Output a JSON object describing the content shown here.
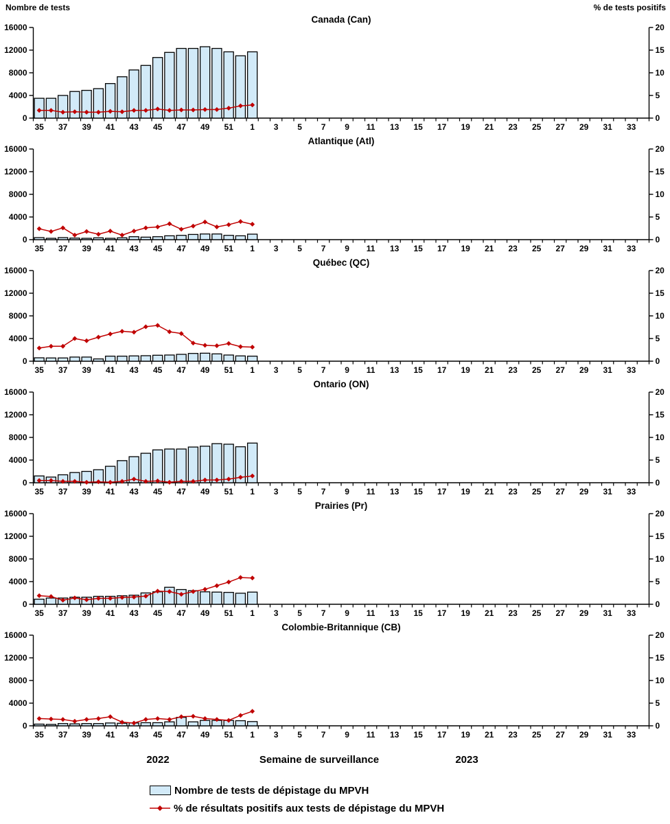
{
  "axis_headers": {
    "left": "Nombre de tests",
    "right": "% de tests positifs"
  },
  "footer": {
    "year_left": "2022",
    "axis_title": "Semaine de surveillance",
    "year_right": "2023"
  },
  "legend": {
    "bar_label": "Nombre de tests de dépistage du MPVH",
    "line_label": "% de résultats positifs aux tests de dépistage du MPVH"
  },
  "colors": {
    "bar_fill": "#D2EAF8",
    "bar_stroke": "#000000",
    "line_color": "#C00000",
    "text_color": "#000000"
  },
  "chart_data": {
    "type": "bar+line combo, 6 stacked regional panels",
    "total_week_slots": 52,
    "week_tick_labels": [
      "35",
      "37",
      "39",
      "41",
      "43",
      "45",
      "47",
      "49",
      "51",
      "1",
      "3",
      "5",
      "7",
      "9",
      "11",
      "13",
      "15",
      "17",
      "19",
      "21",
      "23",
      "25",
      "27",
      "29",
      "31",
      "33"
    ],
    "weeks_with_data": [
      "35",
      "36",
      "37",
      "38",
      "39",
      "40",
      "41",
      "42",
      "43",
      "44",
      "45",
      "46",
      "47",
      "48",
      "49",
      "50",
      "51",
      "52",
      "1"
    ],
    "left_axis": {
      "title": "Nombre de tests",
      "ticks": [
        0,
        4000,
        8000,
        12000,
        16000
      ],
      "max": 16000
    },
    "right_axis": {
      "title": "% de tests positifs",
      "ticks": [
        0,
        5,
        10,
        15,
        20
      ],
      "max": 20
    },
    "panels": [
      {
        "title": "Canada (Can)",
        "tests": [
          3500,
          3500,
          4000,
          4700,
          4900,
          5200,
          6100,
          7300,
          8500,
          9300,
          10700,
          11600,
          12300,
          12300,
          12600,
          12300,
          11700,
          11000,
          11700
        ],
        "pct_positifs": [
          1.7,
          1.7,
          1.3,
          1.4,
          1.3,
          1.3,
          1.5,
          1.4,
          1.7,
          1.7,
          2.0,
          1.7,
          1.8,
          1.8,
          1.9,
          1.9,
          2.2,
          2.7,
          2.9
        ]
      },
      {
        "title": "Atlantique (Atl)",
        "tests": [
          360,
          240,
          360,
          280,
          240,
          320,
          240,
          320,
          520,
          440,
          520,
          680,
          760,
          920,
          1000,
          1000,
          760,
          680,
          970
        ],
        "pct_positifs": [
          2.4,
          1.8,
          2.6,
          1.0,
          1.8,
          1.2,
          1.9,
          1.0,
          1.9,
          2.6,
          2.8,
          3.5,
          2.3,
          3.0,
          3.9,
          2.8,
          3.3,
          4.0,
          3.4
        ]
      },
      {
        "title": "Québec (QC)",
        "tests": [
          600,
          570,
          570,
          730,
          730,
          400,
          890,
          890,
          930,
          970,
          1050,
          1090,
          1210,
          1370,
          1410,
          1290,
          1090,
          930,
          890
        ],
        "pct_positifs": [
          2.9,
          3.3,
          3.3,
          5.0,
          4.5,
          5.3,
          6.0,
          6.6,
          6.4,
          7.6,
          7.9,
          6.5,
          6.1,
          4.0,
          3.5,
          3.4,
          3.9,
          3.2,
          3.1
        ]
      },
      {
        "title": "Ontario (ON)",
        "tests": [
          1200,
          1000,
          1400,
          1800,
          2000,
          2300,
          2900,
          3900,
          4600,
          5200,
          5800,
          5950,
          5950,
          6300,
          6450,
          6900,
          6800,
          6350,
          7000
        ],
        "pct_positifs": [
          0.5,
          0.5,
          0.3,
          0.3,
          0.1,
          0.2,
          0.1,
          0.3,
          0.8,
          0.3,
          0.4,
          0.1,
          0.3,
          0.3,
          0.6,
          0.6,
          0.8,
          1.2,
          1.5
        ]
      },
      {
        "title": "Prairies (Pr)",
        "tests": [
          900,
          1100,
          1100,
          1250,
          1250,
          1400,
          1400,
          1500,
          1600,
          2000,
          2200,
          3000,
          2600,
          2400,
          2200,
          2150,
          2100,
          1950,
          2150
        ],
        "pct_positifs": [
          1.9,
          1.7,
          0.9,
          1.4,
          1.0,
          1.3,
          1.3,
          1.5,
          1.6,
          1.8,
          2.9,
          2.8,
          2.2,
          2.8,
          3.3,
          4.1,
          4.9,
          5.9,
          5.8
        ]
      },
      {
        "title": "Colombie-Britannique (CB)",
        "tests": [
          300,
          250,
          400,
          350,
          400,
          400,
          500,
          450,
          500,
          550,
          550,
          700,
          1500,
          700,
          950,
          950,
          950,
          900,
          750
        ],
        "pct_positifs": [
          1.6,
          1.5,
          1.4,
          1.0,
          1.4,
          1.6,
          2.0,
          0.8,
          0.6,
          1.4,
          1.6,
          1.4,
          2.0,
          2.1,
          1.6,
          1.4,
          1.2,
          2.3,
          3.2
        ]
      }
    ]
  }
}
